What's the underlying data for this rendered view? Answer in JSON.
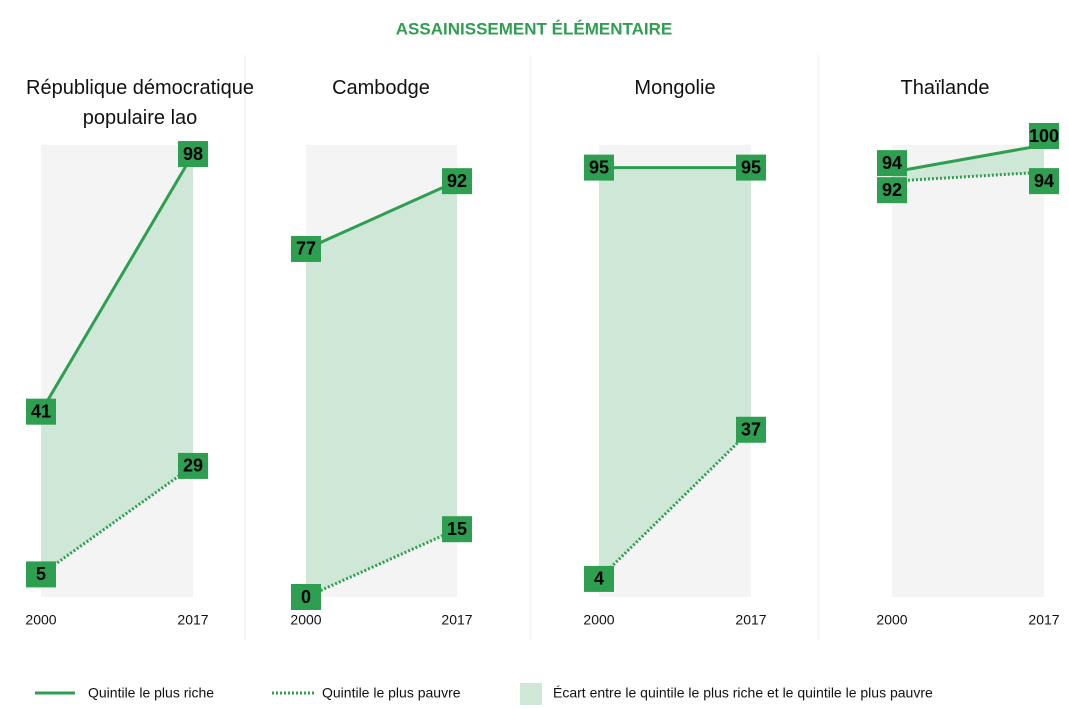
{
  "title": "ASSAINISSEMENT ÉLÉMENTAIRE",
  "gap_label": "Écart entre le quintile le plus riche et le quintile le plus pauvre",
  "chart_data": [
    {
      "type": "line",
      "title": "République démocratique populaire lao",
      "categories": [
        "2000",
        "2017"
      ],
      "ylim": [
        0,
        100
      ],
      "series": [
        {
          "name": "Quintile le plus riche",
          "color": "#2e9e50",
          "values": [
            41,
            98
          ]
        },
        {
          "name": "Quintile le plus pauvre",
          "color": "#2e9e50",
          "values": [
            5,
            29
          ]
        }
      ]
    },
    {
      "type": "line",
      "title": "Cambodge",
      "categories": [
        "2000",
        "2017"
      ],
      "ylim": [
        0,
        100
      ],
      "series": [
        {
          "name": "Quintile le plus riche",
          "color": "#2e9e50",
          "values": [
            77,
            92
          ]
        },
        {
          "name": "Quintile le plus pauvre",
          "color": "#2e9e50",
          "values": [
            0,
            15
          ]
        }
      ]
    },
    {
      "type": "line",
      "title": "Mongolie",
      "categories": [
        "2000",
        "2017"
      ],
      "ylim": [
        0,
        100
      ],
      "series": [
        {
          "name": "Quintile le plus riche",
          "color": "#2e9e50",
          "values": [
            95,
            95
          ]
        },
        {
          "name": "Quintile le plus pauvre",
          "color": "#2e9e50",
          "values": [
            4,
            37
          ]
        }
      ]
    },
    {
      "type": "line",
      "title": "Thaïlande",
      "categories": [
        "2000",
        "2017"
      ],
      "ylim": [
        0,
        100
      ],
      "series": [
        {
          "name": "Quintile le plus riche",
          "color": "#2e9e50",
          "values": [
            94,
            100
          ]
        },
        {
          "name": "Quintile le plus pauvre",
          "color": "#2e9e50",
          "values": [
            92,
            94
          ]
        }
      ]
    }
  ]
}
